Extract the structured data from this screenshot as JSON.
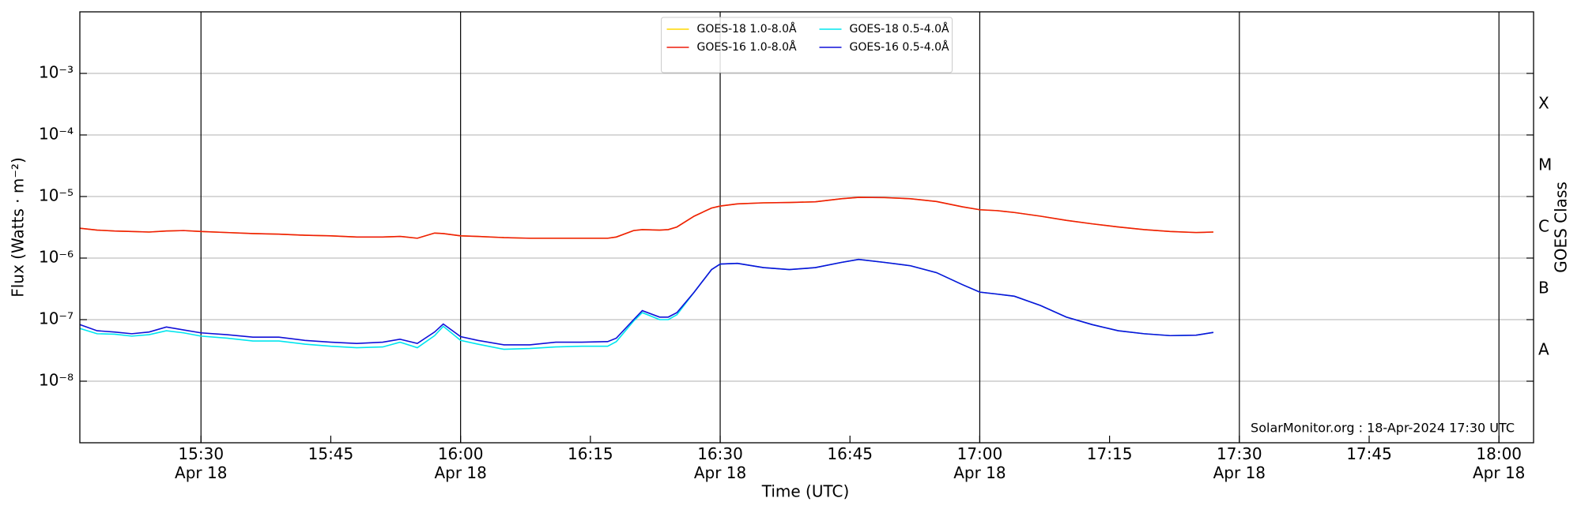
{
  "chart_data": {
    "type": "line",
    "xlabel": "Time (UTC)",
    "ylabel": "Flux (Watts · m⁻²)",
    "y2label": "GOES Class",
    "annotation": "SolarMonitor.org : 18-Apr-2024 17:30 UTC",
    "log_y": true,
    "grid": "y",
    "legend": "upper center",
    "legend_columns": 2,
    "xlim": [
      "15:16",
      "18:04"
    ],
    "xticks": [
      {
        "value": "15:30",
        "label": "15:30\nApr 18"
      },
      "15:45",
      {
        "value": "16:00",
        "label": "16:00\nApr 18"
      },
      "16:15",
      {
        "value": "16:30",
        "label": "16:30\nApr 18"
      },
      "16:45",
      {
        "value": "17:00",
        "label": "17:00\nApr 18"
      },
      "17:15",
      {
        "value": "17:30",
        "label": "17:30\nApr 18"
      },
      "17:45",
      {
        "value": "18:00",
        "label": "18:00\nApr 18"
      }
    ],
    "vertical_lines": [
      "15:30",
      "16:00",
      "16:30",
      "17:00",
      "17:30",
      "18:00"
    ],
    "ylim": [
      1e-09,
      0.01
    ],
    "yticks": [
      {
        "value": 1e-08,
        "label": "10⁻⁸"
      },
      {
        "value": 1e-07,
        "label": "10⁻⁷"
      },
      {
        "value": 1e-06,
        "label": "10⁻⁶"
      },
      {
        "value": 1e-05,
        "label": "10⁻⁵"
      },
      {
        "value": 0.0001,
        "label": "10⁻⁴"
      },
      {
        "value": 0.001,
        "label": "10⁻³"
      }
    ],
    "y2lim": [
      1e-09,
      0.01
    ],
    "y2ticks": [
      {
        "value": 3.16e-08,
        "label": "A"
      },
      {
        "value": 3.16e-07,
        "label": "B"
      },
      {
        "value": 3.16e-06,
        "label": "C"
      },
      {
        "value": 3.16e-05,
        "label": "M"
      },
      {
        "value": 0.000316,
        "label": "X"
      }
    ],
    "x": [
      "15:16",
      "15:18",
      "15:20",
      "15:22",
      "15:24",
      "15:26",
      "15:28",
      "15:30",
      "15:33",
      "15:36",
      "15:39",
      "15:42",
      "15:45",
      "15:48",
      "15:51",
      "15:53",
      "15:55",
      "15:57",
      "15:58",
      "16:00",
      "16:02",
      "16:05",
      "16:08",
      "16:11",
      "16:14",
      "16:17",
      "16:18",
      "16:20",
      "16:21",
      "16:23",
      "16:24",
      "16:25",
      "16:27",
      "16:29",
      "16:30",
      "16:32",
      "16:35",
      "16:38",
      "16:41",
      "16:44",
      "16:46",
      "16:49",
      "16:52",
      "16:55",
      "16:58",
      "17:00",
      "17:02",
      "17:04",
      "17:07",
      "17:10",
      "17:13",
      "17:16",
      "17:19",
      "17:22",
      "17:25",
      "17:27"
    ],
    "series": [
      {
        "name": "GOES-18 1.0-8.0Å",
        "color": "#ffd700",
        "values": [
          3.05e-06,
          2.85e-06,
          2.75e-06,
          2.7e-06,
          2.65e-06,
          2.75e-06,
          2.8e-06,
          2.7e-06,
          2.6e-06,
          2.5e-06,
          2.45e-06,
          2.35e-06,
          2.3e-06,
          2.2e-06,
          2.2e-06,
          2.25e-06,
          2.1e-06,
          2.55e-06,
          2.5e-06,
          2.3e-06,
          2.25e-06,
          2.15e-06,
          2.1e-06,
          2.1e-06,
          2.1e-06,
          2.1e-06,
          2.2e-06,
          2.8e-06,
          2.9e-06,
          2.85e-06,
          2.9e-06,
          3.2e-06,
          4.8e-06,
          6.5e-06,
          7e-06,
          7.6e-06,
          7.9e-06,
          8e-06,
          8.2e-06,
          9.2e-06,
          9.7e-06,
          9.6e-06,
          9.2e-06,
          8.3e-06,
          6.8e-06,
          6.1e-06,
          5.9e-06,
          5.5e-06,
          4.8e-06,
          4.1e-06,
          3.6e-06,
          3.2e-06,
          2.9e-06,
          2.7e-06,
          2.6e-06,
          2.65e-06
        ]
      },
      {
        "name": "GOES-16 1.0-8.0Å",
        "color": "#ee1c0c",
        "values": [
          3.05e-06,
          2.85e-06,
          2.75e-06,
          2.7e-06,
          2.65e-06,
          2.75e-06,
          2.8e-06,
          2.7e-06,
          2.6e-06,
          2.5e-06,
          2.45e-06,
          2.35e-06,
          2.3e-06,
          2.2e-06,
          2.2e-06,
          2.25e-06,
          2.1e-06,
          2.55e-06,
          2.5e-06,
          2.3e-06,
          2.25e-06,
          2.15e-06,
          2.1e-06,
          2.1e-06,
          2.1e-06,
          2.1e-06,
          2.2e-06,
          2.8e-06,
          2.9e-06,
          2.85e-06,
          2.9e-06,
          3.2e-06,
          4.8e-06,
          6.5e-06,
          7e-06,
          7.6e-06,
          7.9e-06,
          8e-06,
          8.2e-06,
          9.2e-06,
          9.7e-06,
          9.6e-06,
          9.2e-06,
          8.3e-06,
          6.8e-06,
          6.1e-06,
          5.9e-06,
          5.5e-06,
          4.8e-06,
          4.1e-06,
          3.6e-06,
          3.2e-06,
          2.9e-06,
          2.7e-06,
          2.6e-06,
          2.65e-06
        ]
      },
      {
        "name": "GOES-18 0.5-4.0Å",
        "color": "#00e5ee",
        "values": [
          7.2e-08,
          5.9e-08,
          5.8e-08,
          5.4e-08,
          5.7e-08,
          6.6e-08,
          6.1e-08,
          5.4e-08,
          5e-08,
          4.5e-08,
          4.5e-08,
          4e-08,
          3.7e-08,
          3.5e-08,
          3.6e-08,
          4.3e-08,
          3.5e-08,
          5.5e-08,
          7.8e-08,
          4.6e-08,
          4e-08,
          3.3e-08,
          3.4e-08,
          3.6e-08,
          3.7e-08,
          3.7e-08,
          4.4e-08,
          9.5e-08,
          1.3e-07,
          1e-07,
          1e-07,
          1.2e-07,
          2.8e-07,
          6.5e-07,
          8e-07,
          8.2e-07,
          7e-07,
          6.5e-07,
          7e-07,
          8.5e-07,
          9.5e-07,
          8.5e-07,
          7.5e-07,
          5.8e-07,
          3.7e-07,
          2.8e-07,
          2.6e-07,
          2.4e-07,
          1.7e-07,
          1.1e-07,
          8.3e-08,
          6.6e-08,
          5.9e-08,
          5.5e-08,
          5.6e-08,
          6.2e-08
        ]
      },
      {
        "name": "GOES-16 0.5-4.0Å",
        "color": "#1010d8",
        "values": [
          8.3e-08,
          6.6e-08,
          6.3e-08,
          5.9e-08,
          6.3e-08,
          7.6e-08,
          6.8e-08,
          6.1e-08,
          5.7e-08,
          5.2e-08,
          5.2e-08,
          4.6e-08,
          4.3e-08,
          4.1e-08,
          4.3e-08,
          4.8e-08,
          4.1e-08,
          6.3e-08,
          8.5e-08,
          5.3e-08,
          4.6e-08,
          3.9e-08,
          3.9e-08,
          4.3e-08,
          4.3e-08,
          4.4e-08,
          5e-08,
          1e-07,
          1.4e-07,
          1.1e-07,
          1.1e-07,
          1.3e-07,
          2.8e-07,
          6.5e-07,
          8e-07,
          8.2e-07,
          7e-07,
          6.5e-07,
          7e-07,
          8.5e-07,
          9.5e-07,
          8.5e-07,
          7.5e-07,
          5.8e-07,
          3.7e-07,
          2.8e-07,
          2.6e-07,
          2.4e-07,
          1.7e-07,
          1.1e-07,
          8.3e-08,
          6.6e-08,
          5.9e-08,
          5.5e-08,
          5.6e-08,
          6.2e-08
        ]
      }
    ]
  }
}
